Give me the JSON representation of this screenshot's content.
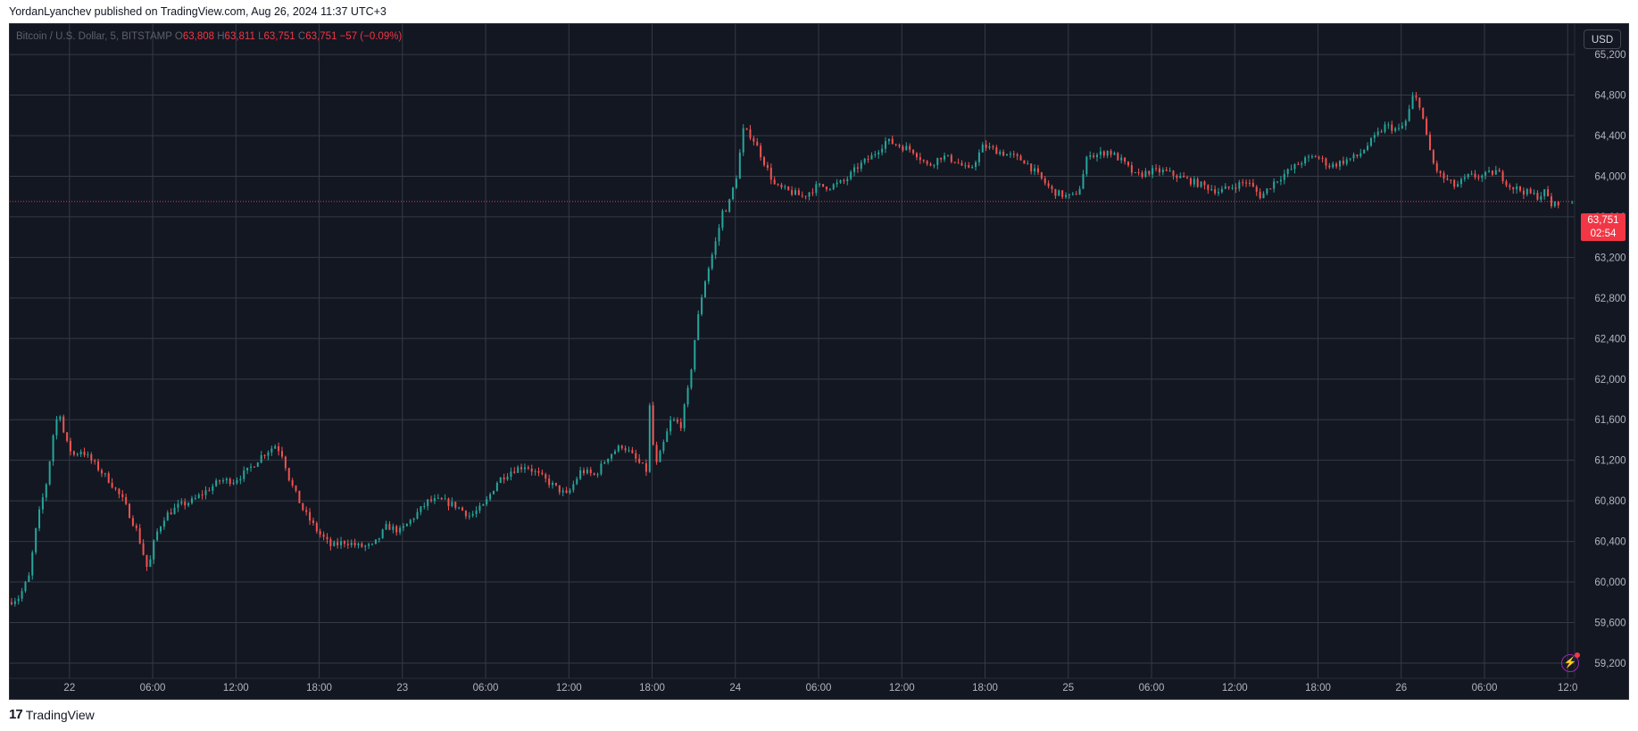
{
  "header": {
    "published": "YordanLyanchev published on TradingView.com, Aug 26, 2024 11:37 UTC+3"
  },
  "legend": {
    "symbol": "Bitcoin / U.S. Dollar, 5, BITSTAMP",
    "o_label": "O",
    "o_value": "63,808",
    "h_label": "H",
    "h_value": "63,811",
    "l_label": "L",
    "l_value": "63,751",
    "c_label": "C",
    "c_value": "63,751",
    "change": "−57 (−0.09%)"
  },
  "currency_button": "USD",
  "last_price": {
    "value": "63,751",
    "countdown": "02:54"
  },
  "footer": {
    "brand": "TradingView",
    "logo_text": "17"
  },
  "colors": {
    "background": "#131722",
    "grid": "#363a45",
    "up": "#26a69a",
    "down": "#ef5350",
    "price_line": "#f23645",
    "axis_text": "#b2b5be"
  },
  "chart_data": {
    "type": "candlestick",
    "symbol": "BTCUSD",
    "exchange": "BITSTAMP",
    "interval": "5",
    "currency": "USD",
    "y_ticks": [
      "59,200",
      "59,600",
      "60,000",
      "60,400",
      "60,800",
      "61,200",
      "61,600",
      "62,000",
      "62,400",
      "62,800",
      "63,200",
      "63,600",
      "64,000",
      "64,400",
      "64,800",
      "65,200"
    ],
    "y_tick_values": [
      59200,
      59600,
      60000,
      60400,
      60800,
      61200,
      61600,
      62000,
      62400,
      62800,
      63200,
      63600,
      64000,
      64400,
      64800,
      65200
    ],
    "ylim": [
      59050,
      65500
    ],
    "x_ticks": [
      "22",
      "06:00",
      "12:00",
      "18:00",
      "23",
      "06:00",
      "12:00",
      "18:00",
      "24",
      "06:00",
      "12:00",
      "18:00",
      "25",
      "06:00",
      "12:00",
      "18:00",
      "26",
      "06:00",
      "12:0"
    ],
    "x_tick_hours": [
      0,
      6,
      12,
      18,
      24,
      30,
      36,
      42,
      48,
      54,
      60,
      66,
      72,
      78,
      84,
      90,
      96,
      102,
      108
    ],
    "x_range_hours": [
      -4.3,
      108.5
    ],
    "grid": true,
    "last_price": 63751,
    "price_path_hours": [
      -4.3,
      -3.5,
      -2.8,
      -2.2,
      -1.5,
      -1.0,
      -0.6,
      -0.2,
      0.4,
      1.0,
      2.0,
      3.0,
      4.0,
      5.0,
      5.8,
      6.0,
      6.3,
      7.0,
      8.0,
      9.0,
      10.0,
      11.0,
      12.0,
      13.0,
      14.0,
      15.0,
      15.5,
      16.0,
      17.0,
      18.0,
      19.0,
      20.0,
      21.0,
      22.0,
      23.0,
      24.0,
      25.0,
      26.0,
      27.0,
      28.0,
      29.0,
      30.0,
      31.0,
      32.0,
      33.0,
      34.0,
      35.0,
      36.0,
      37.0,
      38.0,
      39.0,
      40.0,
      41.0,
      41.7,
      42.0,
      42.3,
      42.8,
      43.5,
      44.2,
      44.8,
      45.3,
      45.8,
      46.3,
      46.8,
      47.2,
      47.6,
      48.2,
      48.7,
      49.3,
      50.0,
      51.0,
      52.0,
      53.0,
      54.0,
      55.0,
      56.0,
      57.0,
      58.0,
      59.0,
      60.0,
      61.0,
      62.0,
      63.0,
      64.0,
      65.0,
      66.0,
      67.0,
      68.0,
      69.0,
      70.0,
      71.0,
      72.0,
      72.5,
      73.0,
      73.6,
      74.0,
      75.0,
      76.0,
      77.0,
      78.0,
      79.0,
      80.0,
      81.0,
      82.0,
      83.0,
      84.0,
      85.0,
      86.0,
      87.0,
      88.0,
      89.0,
      90.0,
      91.0,
      92.0,
      93.0,
      94.0,
      95.0,
      96.0,
      96.5,
      97.0,
      97.5,
      98.0,
      98.5,
      99.0,
      100.0,
      101.0,
      102.0,
      103.0,
      104.0,
      105.0,
      106.0,
      106.5,
      107.0,
      107.5,
      108.0
    ],
    "price_path_values": [
      59800,
      59850,
      60050,
      60600,
      61000,
      61500,
      61700,
      61400,
      61250,
      61300,
      61150,
      61000,
      60800,
      60500,
      60100,
      60250,
      60450,
      60650,
      60750,
      60800,
      60900,
      61000,
      61000,
      61100,
      61250,
      61350,
      61250,
      61000,
      60700,
      60500,
      60350,
      60400,
      60350,
      60350,
      60550,
      60500,
      60650,
      60800,
      60800,
      60750,
      60650,
      60750,
      61000,
      61100,
      61150,
      61050,
      60950,
      60850,
      61100,
      61050,
      61250,
      61350,
      61200,
      61100,
      61850,
      61100,
      61300,
      61600,
      61550,
      61950,
      62500,
      62900,
      63150,
      63400,
      63650,
      63700,
      64000,
      64450,
      64400,
      64200,
      63900,
      63850,
      63800,
      63900,
      63900,
      63950,
      64100,
      64200,
      64350,
      64300,
      64250,
      64100,
      64200,
      64150,
      64050,
      64300,
      64250,
      64200,
      64150,
      64000,
      63850,
      63800,
      63800,
      63900,
      64250,
      64200,
      64250,
      64150,
      64000,
      64050,
      64050,
      64000,
      63950,
      63900,
      63850,
      63900,
      63950,
      63800,
      63950,
      64050,
      64150,
      64200,
      64100,
      64150,
      64200,
      64350,
      64500,
      64450,
      64550,
      64800,
      64700,
      64350,
      64100,
      64000,
      63900,
      64000,
      64000,
      64050,
      63900,
      63850,
      63800,
      63850,
      63700,
      63751
    ]
  }
}
